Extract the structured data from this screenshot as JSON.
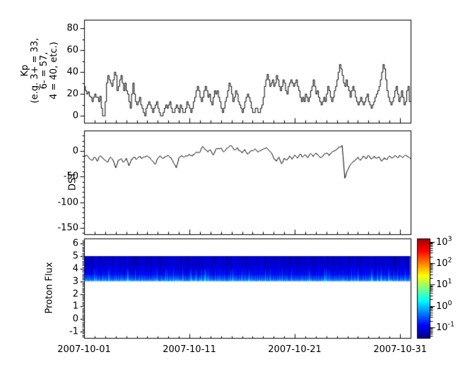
{
  "window": {
    "background": "#ffffff",
    "foreground": "#000000"
  },
  "x_axis": {
    "tick_labels": [
      "2007-10-01",
      "2007-10-11",
      "2007-10-21",
      "2007-10-31"
    ],
    "major_tick_days": [
      0,
      10,
      20,
      30
    ],
    "minor_tick_every_days": 1,
    "span_days": 31
  },
  "chart_data": [
    {
      "id": "kp",
      "type": "line",
      "line_style": "step",
      "line_color": "#000000",
      "ylabel_lines": [
        "Kp",
        "(e.g. 3+ = 33,",
        "6- = 57,",
        "4 = 40, etc.)"
      ],
      "ytick_values": [
        0,
        20,
        40,
        60,
        80
      ],
      "ytick_labels": [
        "0",
        "20",
        "40",
        "60",
        "80"
      ],
      "yminor_step": 10,
      "ylim": [
        -6,
        88
      ],
      "x_start": "2007-10-01",
      "cadence_hours": 3,
      "values": [
        27,
        23,
        20,
        22,
        18,
        17,
        13,
        17,
        20,
        17,
        17,
        13,
        18,
        7,
        0,
        0,
        13,
        30,
        37,
        33,
        30,
        27,
        33,
        40,
        37,
        23,
        27,
        33,
        37,
        30,
        23,
        30,
        23,
        20,
        13,
        7,
        20,
        30,
        20,
        13,
        10,
        13,
        17,
        10,
        7,
        3,
        0,
        7,
        10,
        13,
        10,
        7,
        3,
        7,
        10,
        13,
        7,
        3,
        0,
        0,
        3,
        7,
        10,
        7,
        10,
        13,
        7,
        3,
        3,
        7,
        10,
        7,
        3,
        10,
        7,
        3,
        3,
        7,
        13,
        10,
        7,
        3,
        7,
        13,
        17,
        23,
        27,
        23,
        17,
        13,
        17,
        23,
        27,
        23,
        17,
        20,
        13,
        10,
        17,
        23,
        20,
        23,
        17,
        13,
        7,
        3,
        7,
        13,
        17,
        23,
        30,
        27,
        20,
        13,
        17,
        23,
        20,
        13,
        10,
        7,
        3,
        7,
        13,
        17,
        20,
        17,
        13,
        7,
        3,
        3,
        7,
        7,
        3,
        3,
        7,
        10,
        17,
        27,
        33,
        38,
        33,
        27,
        30,
        33,
        27,
        30,
        37,
        33,
        27,
        23,
        27,
        33,
        30,
        23,
        20,
        27,
        30,
        33,
        30,
        27,
        30,
        33,
        27,
        23,
        17,
        13,
        17,
        13,
        20,
        17,
        13,
        17,
        23,
        27,
        33,
        27,
        20,
        23,
        17,
        13,
        10,
        13,
        17,
        13,
        20,
        27,
        23,
        17,
        13,
        17,
        23,
        27,
        33,
        40,
        47,
        43,
        37,
        30,
        27,
        33,
        27,
        23,
        17,
        23,
        27,
        23,
        17,
        13,
        10,
        13,
        17,
        13,
        10,
        13,
        17,
        20,
        13,
        10,
        7,
        10,
        13,
        17,
        20,
        23,
        27,
        33,
        40,
        47,
        43,
        33,
        23,
        17,
        13,
        10,
        13,
        17,
        23,
        27,
        20,
        13,
        17,
        23,
        17,
        10,
        13,
        23,
        27,
        13
      ]
    },
    {
      "id": "dst",
      "type": "line",
      "line_style": "linear",
      "line_color": "#000000",
      "ylabel": "DST",
      "ytick_values": [
        0,
        -50,
        -100,
        -150
      ],
      "ytick_labels": [
        "0",
        "-50",
        "-100",
        "-150"
      ],
      "yminor_step": 10,
      "ylim": [
        -162,
        40
      ],
      "x_start": "2007-10-01",
      "cadence_hours": 6,
      "noise_amplitude": 3,
      "values": [
        -12,
        -8,
        -15,
        -18,
        -12,
        -20,
        -10,
        -14,
        -18,
        -22,
        -12,
        -18,
        -33,
        -18,
        -15,
        -22,
        -14,
        -29,
        -16,
        -12,
        -16,
        -11,
        -14,
        -12,
        -10,
        -13,
        -20,
        -26,
        -14,
        -10,
        -14,
        -11,
        -9,
        -13,
        -24,
        -33,
        -13,
        -9,
        -12,
        -10,
        -7,
        -10,
        -5,
        -3,
        -2,
        9,
        2,
        -2,
        2,
        -8,
        3,
        5,
        6,
        -2,
        4,
        8,
        10,
        2,
        6,
        1,
        -4,
        3,
        -6,
        -1,
        1,
        4,
        -2,
        0,
        3,
        6,
        2,
        -3,
        -14,
        -20,
        -12,
        -25,
        -14,
        -18,
        -10,
        -16,
        -8,
        -14,
        -6,
        -12,
        -7,
        -13,
        -5,
        -11,
        -4,
        -9,
        -13,
        -7,
        -4,
        -9,
        -3,
        0,
        4,
        8,
        11,
        -53,
        -38,
        -28,
        -22,
        -17,
        -12,
        -18,
        -10,
        -15,
        -9,
        -16,
        -11,
        -14,
        -11,
        -20,
        -13,
        -17,
        -10,
        -14,
        -9,
        -13,
        -9,
        -13,
        -8,
        -12,
        -15
      ]
    },
    {
      "id": "proton_flux",
      "type": "heatmap",
      "ylabel": "Proton Flux",
      "ytick_values": [
        -1,
        0,
        1,
        2,
        3,
        4,
        5,
        6
      ],
      "ytick_labels": [
        "-1",
        "0",
        "1",
        "2",
        "3",
        "4",
        "5",
        "6"
      ],
      "yminor_step": 0.125,
      "ylim": [
        -1.5,
        6.4
      ],
      "band": {
        "ymin": 3,
        "ymax": 5,
        "noise_seed": 7,
        "base_color": "#0000cc",
        "bright_color": "#00aaff",
        "description": "continuous striped blue band of low proton flux (~1e-1), brighter light-blue streaks along the lower edge"
      },
      "colorbar": {
        "scale": "log",
        "colormap": "jet",
        "tick_exponents": [
          3,
          2,
          1,
          0,
          -1
        ],
        "tick_labels": [
          "10^3",
          "10^2",
          "10^1",
          "10^0",
          "10^-1"
        ],
        "range_exponents": [
          -1.5,
          3.15
        ],
        "jet_stops": [
          [
            0,
            "#000083"
          ],
          [
            0.125,
            "#0000ff"
          ],
          [
            0.375,
            "#00ffff"
          ],
          [
            0.625,
            "#ffff00"
          ],
          [
            0.875,
            "#ff0000"
          ],
          [
            1,
            "#a00000"
          ]
        ]
      }
    }
  ]
}
